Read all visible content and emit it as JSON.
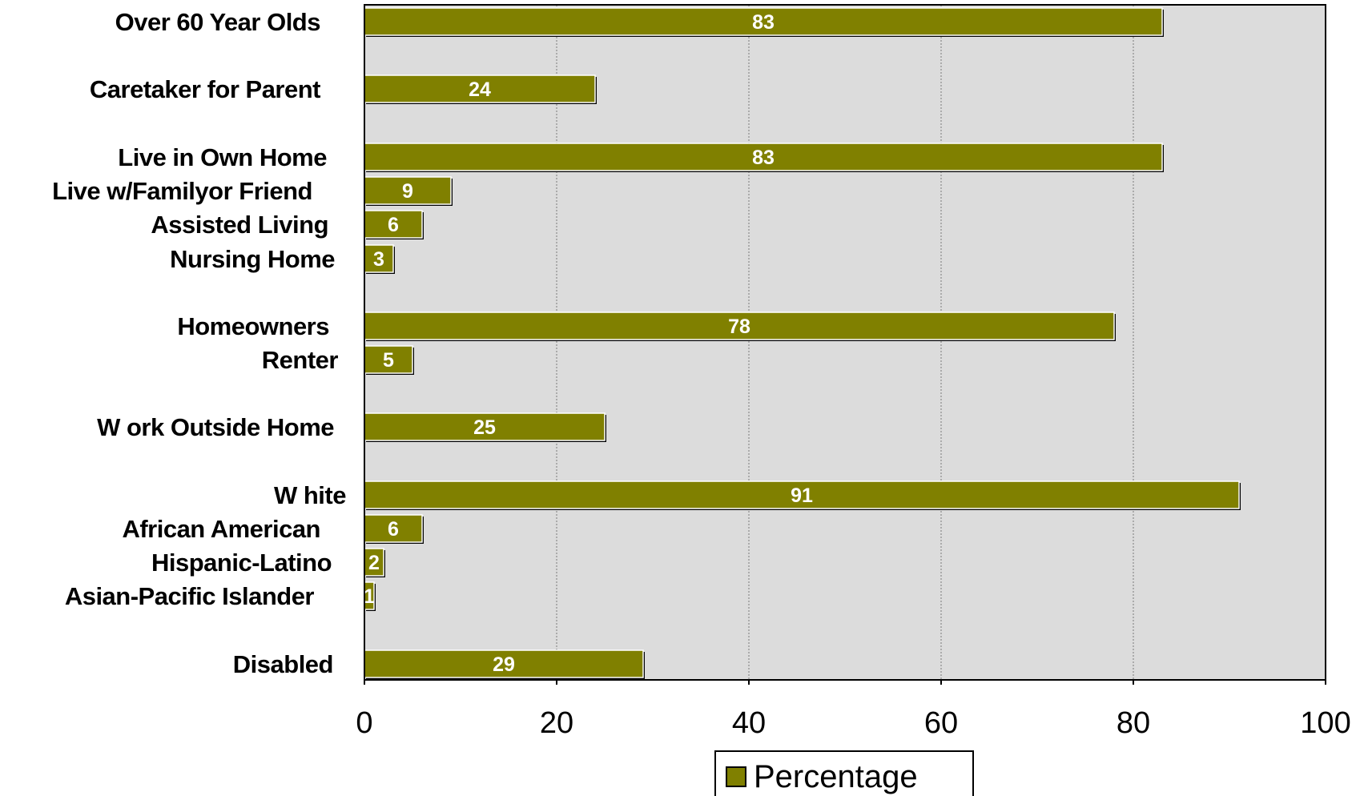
{
  "chart_data": {
    "type": "bar",
    "orientation": "horizontal",
    "categories": [
      "Over 60 Year Olds",
      "Caretaker for Parent",
      "Live in Own Home",
      "Live w/Familyor Friend",
      "Assisted Living",
      "Nursing Home",
      "Homeowners",
      "Renter",
      "W ork Outside Home",
      "W hite",
      "African American",
      "Hispanic-Latino",
      "Asian-Pacific Islander",
      "Disabled"
    ],
    "series": [
      {
        "name": "Percentage",
        "values": [
          83,
          24,
          83,
          9,
          6,
          3,
          78,
          5,
          25,
          91,
          6,
          2,
          1,
          29
        ]
      }
    ],
    "xlim": [
      0,
      100
    ],
    "xticks": [
      "0",
      "20",
      "40",
      "60",
      "80",
      "100"
    ],
    "grid": "vertical-dashed",
    "legend_position": "bottom",
    "colors": {
      "bar": "#808000",
      "plot_background": "#dcdcdc"
    }
  }
}
